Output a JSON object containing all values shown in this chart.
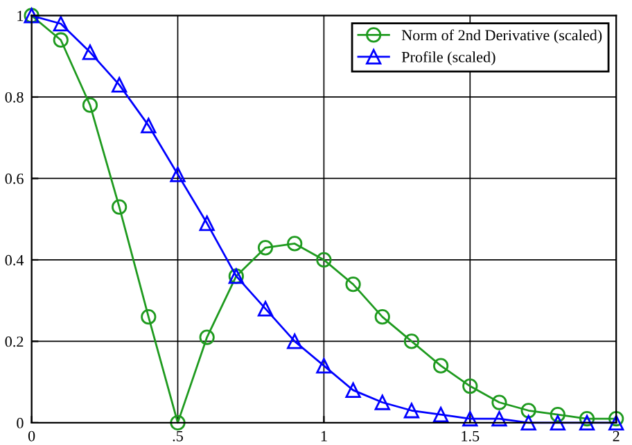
{
  "chart_data": {
    "type": "line",
    "xlim": [
      0,
      2
    ],
    "ylim": [
      0,
      1
    ],
    "xticks": [
      0,
      {
        "value": 0.5,
        "label": ".5"
      },
      1,
      1.5,
      2
    ],
    "yticks": [
      0,
      0.2,
      0.4,
      0.6,
      0.8,
      1
    ],
    "grid": true,
    "legend": "top right",
    "series": [
      {
        "name": "Norm of 2nd Derivative (scaled)",
        "color": "#1e9a1e",
        "marker": "circle",
        "x": [
          0,
          0.1,
          0.2,
          0.3,
          0.4,
          0.5,
          0.6,
          0.7,
          0.8,
          0.9,
          1.0,
          1.1,
          1.2,
          1.3,
          1.4,
          1.5,
          1.6,
          1.7,
          1.8,
          1.9,
          2.0
        ],
        "values": [
          1.0,
          0.94,
          0.78,
          0.53,
          0.26,
          0.0,
          0.21,
          0.36,
          0.43,
          0.44,
          0.4,
          0.34,
          0.26,
          0.2,
          0.14,
          0.09,
          0.05,
          0.03,
          0.02,
          0.01,
          0.01
        ]
      },
      {
        "name": "Profile (scaled)",
        "color": "#0000ff",
        "marker": "triangle",
        "x": [
          0,
          0.1,
          0.2,
          0.3,
          0.4,
          0.5,
          0.6,
          0.7,
          0.8,
          0.9,
          1.0,
          1.1,
          1.2,
          1.3,
          1.4,
          1.5,
          1.6,
          1.7,
          1.8,
          1.9,
          2.0
        ],
        "values": [
          1.0,
          0.98,
          0.91,
          0.83,
          0.73,
          0.61,
          0.49,
          0.36,
          0.28,
          0.2,
          0.14,
          0.08,
          0.05,
          0.03,
          0.02,
          0.01,
          0.01,
          0.0,
          0.0,
          0.0,
          0.0
        ]
      }
    ]
  }
}
